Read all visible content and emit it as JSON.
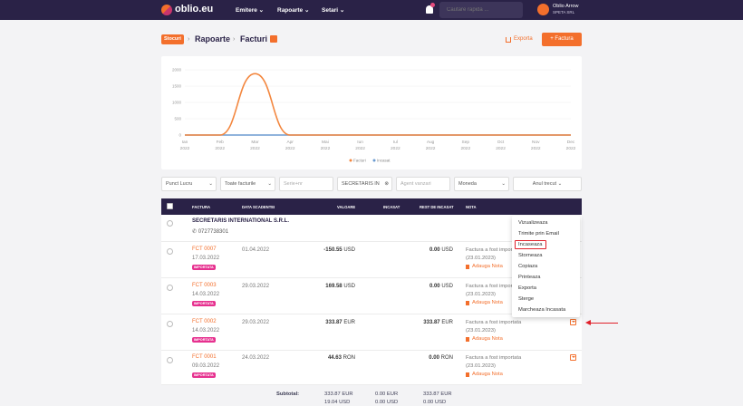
{
  "topbar": {
    "logo": "oblio.eu",
    "nav": [
      "Emitere",
      "Rapoarte",
      "Setari"
    ],
    "search_placeholder": "Cautare rapida ...",
    "user_name": "Oblio Arrow",
    "user_company": "SPETA SRL",
    "notif_count": "1"
  },
  "breadcrumb": {
    "tag": "Stocuri",
    "items": [
      "Rapoarte",
      "Facturi"
    ]
  },
  "actions": {
    "export": "Exporta",
    "new": "+ Factura"
  },
  "chart_data": {
    "type": "line",
    "categories": [
      "Ian 2022",
      "Feb 2022",
      "Mar 2022",
      "Apr 2022",
      "Mai 2022",
      "Iun 2022",
      "Iul 2022",
      "Aug 2022",
      "Sep 2022",
      "Oct 2022",
      "Nov 2022",
      "Dec 2022"
    ],
    "yticks": [
      "0",
      "500",
      "1000",
      "1500",
      "2000"
    ],
    "ylim": [
      0,
      2000
    ],
    "series": [
      {
        "name": "Facturi",
        "color": "#f3873f",
        "values": [
          0,
          0,
          1880,
          0,
          0,
          0,
          0,
          0,
          0,
          0,
          0,
          0
        ]
      },
      {
        "name": "Incasat",
        "color": "#6b9bd1",
        "values": [
          0,
          0,
          0,
          0,
          0,
          0,
          0,
          0,
          0,
          0,
          0,
          0
        ]
      }
    ]
  },
  "filters": [
    "Punct Lucru",
    "Toate facturile",
    "Serie+nr",
    "SECRETARIS IN",
    "Agent vanzari",
    "Moneda",
    "Anul trecut"
  ],
  "table": {
    "headers": [
      "FACTURA",
      "DATA SCADENTEI",
      "VALOARE",
      "INCASAT",
      "REST DE INCASAT",
      "NOTA"
    ],
    "client": {
      "name": "SECRETARIS INTERNATIONAL S.R.L.",
      "phone": "0727738301"
    },
    "rows": [
      {
        "invoice": "FCT 0007",
        "date": "17.03.2022",
        "badge": "IMPORTATA",
        "due": "01.04.2022",
        "value": "-150.55",
        "value_cur": "USD",
        "rest": "0.00",
        "rest_cur": "USD",
        "note": "Factura a fost importata",
        "note_date": "(23.01.2023)",
        "add_note": "Adauga Nota"
      },
      {
        "invoice": "FCT 0003",
        "date": "14.03.2022",
        "badge": "IMPORTATA",
        "due": "29.03.2022",
        "value": "169.58",
        "value_cur": "USD",
        "rest": "0.00",
        "rest_cur": "USD",
        "note": "Factura a fost importata",
        "note_date": "(23.01.2023)",
        "add_note": "Adauga Nota"
      },
      {
        "invoice": "FCT 0002",
        "date": "14.03.2022",
        "badge": "IMPORTATA",
        "due": "29.03.2022",
        "value": "333.87",
        "value_cur": "EUR",
        "rest": "333.87",
        "rest_cur": "EUR",
        "note": "Factura a fost importata",
        "note_date": "(23.01.2023)",
        "add_note": "Adauga Nota"
      },
      {
        "invoice": "FCT 0001",
        "date": "09.03.2022",
        "badge": "IMPORTATA",
        "due": "24.03.2022",
        "value": "44.63",
        "value_cur": "RON",
        "rest": "0.00",
        "rest_cur": "RON",
        "note": "Factura a fost importata",
        "note_date": "(23.01.2023)",
        "add_note": "Adauga Nota"
      }
    ],
    "subtotal": {
      "label": "Subtotal:",
      "value1": "333.87 EUR",
      "incasat1": "0.00 EUR",
      "rest1": "333.87 EUR",
      "value2": "19.04 USD",
      "incasat2": "0.00 USD",
      "rest2": "0.00 USD"
    }
  },
  "menu": [
    "Vizualizeaza",
    "Trimite prin Email",
    "Incaseaza",
    "Storneaza",
    "Copiaza",
    "Printeaza",
    "Exporta",
    "Sterge",
    "Marcheaza Incasata"
  ]
}
